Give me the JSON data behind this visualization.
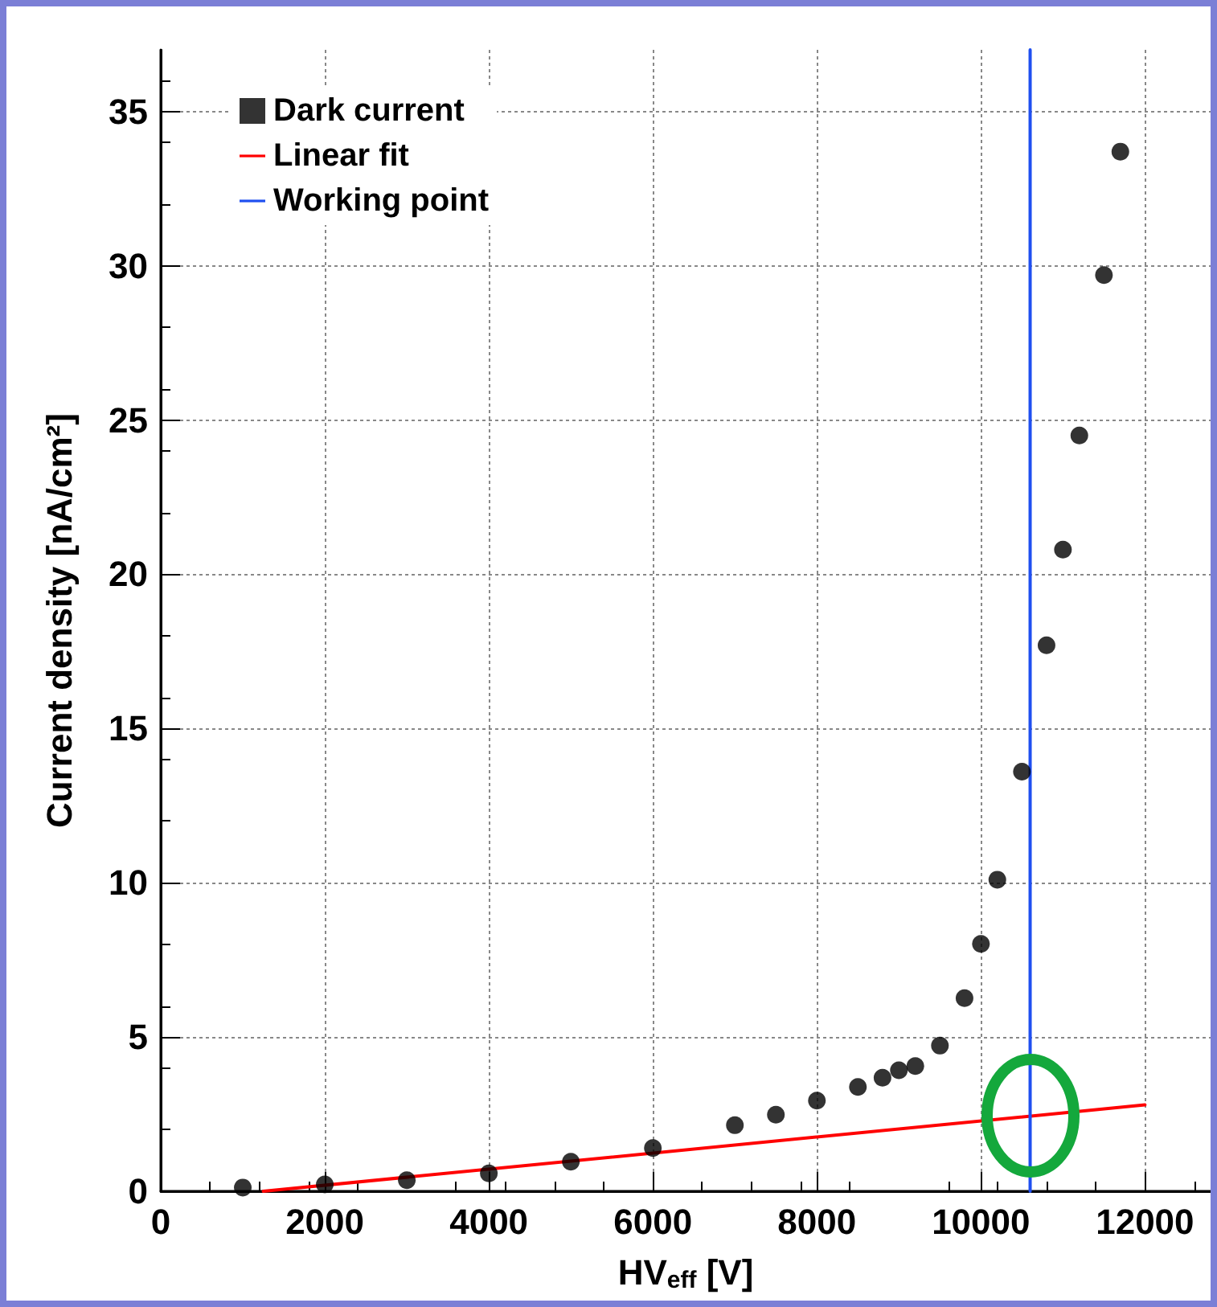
{
  "chart_data": {
    "type": "scatter",
    "xlabel": "HV$_{eff}$ [V]",
    "ylabel": "Current density [nA/cm²]",
    "xlim": [
      0,
      12800
    ],
    "xticks": [
      0,
      2000,
      4000,
      6000,
      8000,
      10000,
      12000
    ],
    "ylim": [
      0,
      37
    ],
    "yticks": [
      0,
      5,
      10,
      15,
      20,
      25,
      30,
      35
    ],
    "grid": true,
    "legend": "top left",
    "marker": "circle",
    "series": [
      {
        "name": "Dark current",
        "color": "#000000",
        "x": [
          1000,
          2000,
          3000,
          4000,
          5000,
          6000,
          7000,
          7500,
          8000,
          8500,
          8800,
          9000,
          9200,
          9500,
          9800,
          10000,
          10200,
          10500,
          10800,
          11000,
          11200,
          11500,
          11700
        ],
        "values": [
          0.12,
          0.22,
          0.36,
          0.58,
          0.96,
          1.4,
          2.14,
          2.48,
          2.94,
          3.38,
          3.68,
          3.92,
          4.06,
          4.72,
          6.26,
          8.02,
          10.1,
          13.6,
          17.7,
          20.8,
          24.5,
          29.7,
          33.7
        ]
      },
      {
        "name": "Linear fit",
        "type": "line",
        "color": "#ff0000",
        "marker": "none",
        "line_style": "solid",
        "x": [
          1250,
          12000
        ],
        "values": [
          0,
          2.8
        ]
      },
      {
        "name": "Working point",
        "type": "line",
        "color": "#1f4ff0",
        "marker": "none",
        "line_style": "solid",
        "x": [
          10600,
          10600
        ],
        "values": [
          0,
          37
        ]
      }
    ]
  }
}
